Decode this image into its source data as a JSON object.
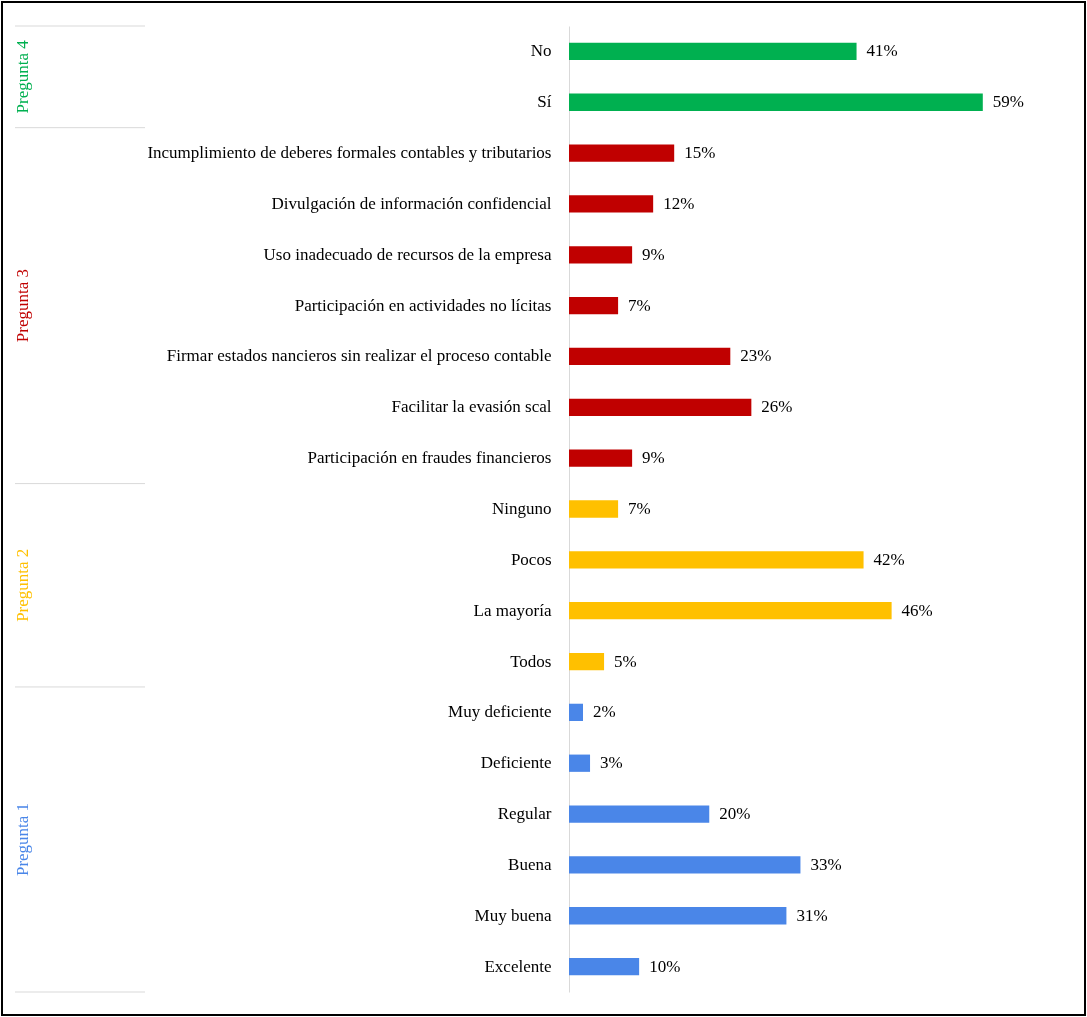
{
  "chart_data": {
    "type": "bar",
    "orientation": "horizontal",
    "tick_labels": "y",
    "categories": [
      "No",
      "Sí",
      "Incumplimiento de deberes formales contables y tributarios",
      "Divulgación de información confidencial",
      "Uso inadecuado de recursos de la empresa",
      "Participación en actividades no lícitas",
      "Firmar estados nancieros sin realizar el proceso contable",
      "Facilitar la evasión scal",
      "Participación en fraudes financieros",
      "Ninguno",
      "Pocos",
      "La mayoría",
      "Todos",
      "Muy deficiente",
      "Deficiente",
      "Regular",
      "Buena",
      "Muy buena",
      "Excelente"
    ],
    "series": [
      {
        "name": "Pregunta 4",
        "color": "#00b050",
        "values": [
          41,
          59,
          null,
          null,
          null,
          null,
          null,
          null,
          null,
          null,
          null,
          null,
          null,
          null,
          null,
          null,
          null,
          null,
          null
        ],
        "value_labels": [
          "41%",
          "59%",
          null,
          null,
          null,
          null,
          null,
          null,
          null,
          null,
          null,
          null,
          null,
          null,
          null,
          null,
          null,
          null,
          null
        ]
      },
      {
        "name": "Pregunta 3",
        "color": "#c00000",
        "values": [
          null,
          null,
          15,
          12,
          9,
          7,
          23,
          26,
          9,
          null,
          null,
          null,
          null,
          null,
          null,
          null,
          null,
          null,
          null
        ],
        "value_labels": [
          null,
          null,
          "15%",
          "12%",
          "9%",
          "7%",
          "23%",
          "26%",
          "9%",
          null,
          null,
          null,
          null,
          null,
          null,
          null,
          null,
          null,
          null
        ]
      },
      {
        "name": "Pregunta 2",
        "color": "#ffc000",
        "values": [
          null,
          null,
          null,
          null,
          null,
          null,
          null,
          null,
          null,
          7,
          42,
          46,
          5,
          null,
          null,
          null,
          null,
          null,
          null
        ],
        "value_labels": [
          null,
          null,
          null,
          null,
          null,
          null,
          null,
          null,
          null,
          "7%",
          "42%",
          "46%",
          "5%",
          null,
          null,
          null,
          null,
          null,
          null
        ]
      },
      {
        "name": "Pregunta 1",
        "color": "#4a86e8",
        "values": [
          null,
          null,
          null,
          null,
          null,
          null,
          null,
          null,
          null,
          null,
          null,
          null,
          null,
          2,
          3,
          20,
          33,
          31,
          10
        ],
        "value_labels": [
          null,
          null,
          null,
          null,
          null,
          null,
          null,
          null,
          null,
          null,
          null,
          null,
          null,
          "2%",
          "3%",
          "20%",
          "33%",
          "31%",
          "10%"
        ]
      }
    ]
  }
}
